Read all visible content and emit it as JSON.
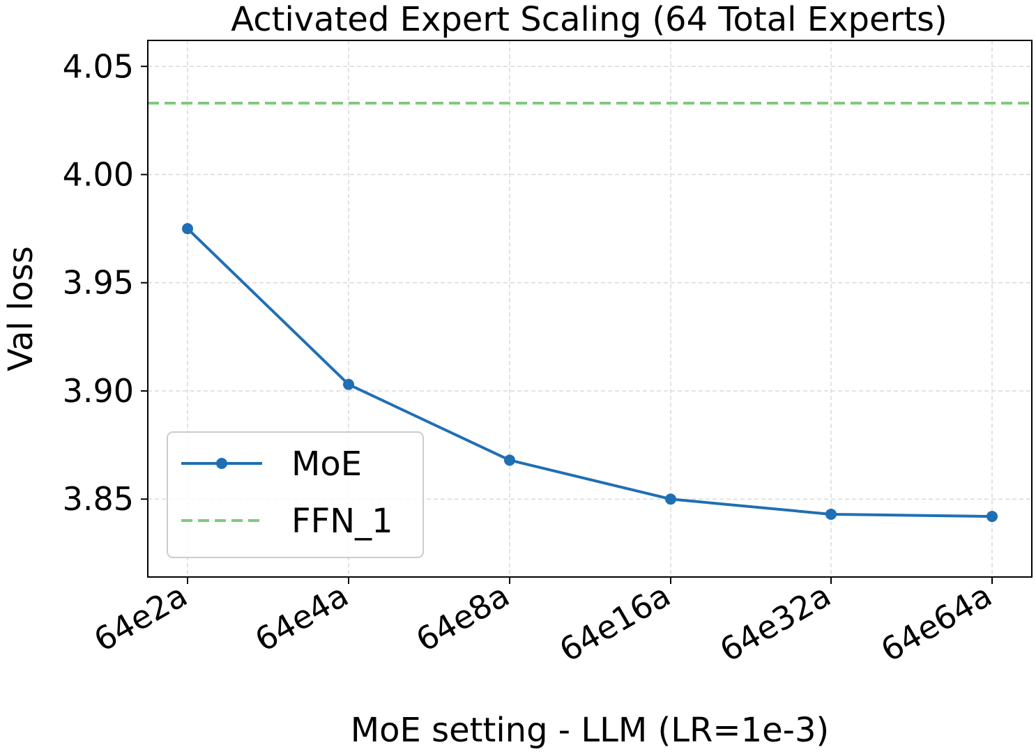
{
  "chart_data": {
    "type": "line",
    "title": "Activated Expert Scaling (64 Total Experts)",
    "xlabel": "MoE setting - LLM (LR=1e-3)",
    "ylabel": "Val loss",
    "categories": [
      "64e2a",
      "64e4a",
      "64e8a",
      "64e16a",
      "64e32a",
      "64e64a"
    ],
    "series": [
      {
        "name": "MoE",
        "values": [
          3.975,
          3.903,
          3.868,
          3.85,
          3.843,
          3.842
        ],
        "color": "#1f6fb4",
        "style": "solid",
        "marker": "circle"
      }
    ],
    "reference_lines": [
      {
        "name": "FFN_1",
        "y": 4.033,
        "color": "#7fc97f",
        "style": "dashed"
      }
    ],
    "yticks": [
      "4.05",
      "4.00",
      "3.95",
      "3.90",
      "3.85"
    ],
    "ylim": [
      3.814,
      4.062
    ],
    "grid": true,
    "legend_position": "lower-left"
  }
}
